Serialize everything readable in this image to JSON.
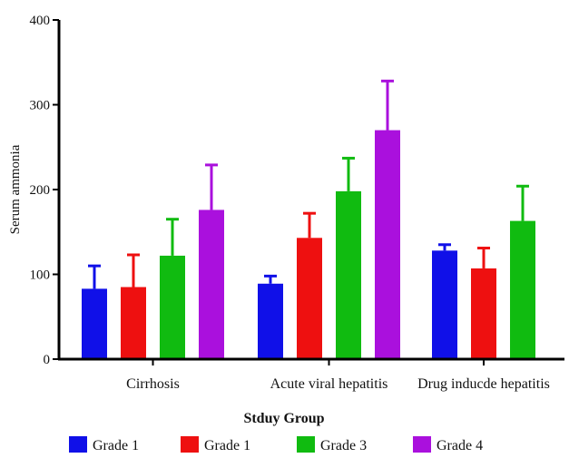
{
  "chart_data": {
    "type": "bar",
    "title": "",
    "xlabel": "Stduy Group",
    "ylabel": "Serum ammonia",
    "ylim": [
      0,
      400
    ],
    "yticks": [
      0,
      100,
      200,
      300,
      400
    ],
    "grid": false,
    "legend_position": "bottom",
    "categories": [
      "Cirrhosis",
      "Acute viral hepatitis",
      "Drug inducde hepatitis"
    ],
    "series": [
      {
        "name": "Grade 1",
        "color": "#1010e8",
        "values": [
          83,
          89,
          128
        ],
        "errors": [
          27,
          9,
          7
        ]
      },
      {
        "name": "Grade 1",
        "color": "#ee1010",
        "values": [
          85,
          143,
          107
        ],
        "errors": [
          38,
          29,
          24
        ]
      },
      {
        "name": "Grade 3",
        "color": "#10bb10",
        "values": [
          122,
          198,
          163
        ],
        "errors": [
          43,
          39,
          41
        ]
      },
      {
        "name": "Grade 4",
        "color": "#aa10dd",
        "values": [
          176,
          270,
          null
        ],
        "errors": [
          53,
          58,
          null
        ]
      }
    ]
  }
}
